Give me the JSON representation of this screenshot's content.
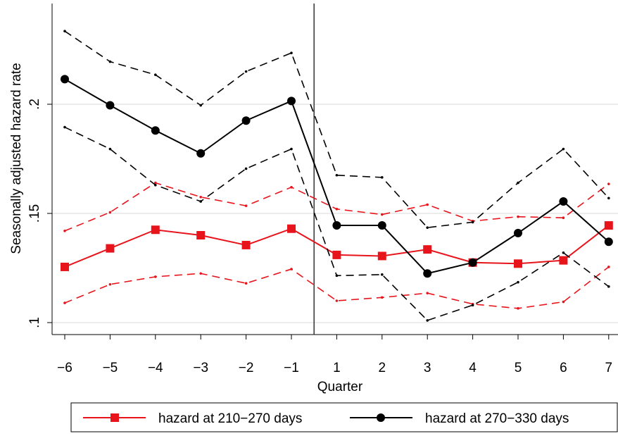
{
  "chart_data": {
    "type": "line",
    "xlabel": "Quarter",
    "ylabel": "Seasonally adjusted hazard rate",
    "categories": [
      "−6",
      "−5",
      "−4",
      "−3",
      "−2",
      "−1",
      "1",
      "2",
      "3",
      "4",
      "5",
      "6",
      "7"
    ],
    "yticks": [
      0.1,
      0.15,
      0.2
    ],
    "ytick_labels": [
      ".1",
      ".15",
      ".2"
    ],
    "ylim": [
      0.097,
      0.245
    ],
    "grid": "horizontal",
    "vline_after_category": "−1",
    "legend_position": "bottom",
    "series": [
      {
        "name": "hazard at 210−270 days",
        "color": "#e8141c",
        "marker": "square",
        "values": [
          0.1255,
          0.134,
          0.1425,
          0.14,
          0.1355,
          0.143,
          0.131,
          0.1305,
          0.1335,
          0.1275,
          0.127,
          0.1285,
          0.1445
        ],
        "ci_upper": [
          0.142,
          0.1505,
          0.164,
          0.1575,
          0.1535,
          0.162,
          0.152,
          0.1495,
          0.154,
          0.1465,
          0.1485,
          0.148,
          0.1635
        ],
        "ci_lower": [
          0.109,
          0.1175,
          0.121,
          0.1225,
          0.118,
          0.1245,
          0.11,
          0.1115,
          0.1135,
          0.1085,
          0.1065,
          0.1095,
          0.1255
        ]
      },
      {
        "name": "hazard at 270−330 days",
        "color": "#000000",
        "marker": "circle",
        "values": [
          0.2115,
          0.1995,
          0.188,
          0.1775,
          0.1925,
          0.2015,
          0.1445,
          0.1445,
          0.1225,
          0.1275,
          0.141,
          0.1555,
          0.137
        ],
        "ci_upper": [
          0.2335,
          0.2195,
          0.2135,
          0.1995,
          0.215,
          0.2235,
          0.1675,
          0.1665,
          0.1435,
          0.146,
          0.164,
          0.1795,
          0.157
        ],
        "ci_lower": [
          0.1895,
          0.1795,
          0.163,
          0.1555,
          0.1705,
          0.1795,
          0.1215,
          0.122,
          0.101,
          0.108,
          0.1185,
          0.132,
          0.1165
        ]
      }
    ]
  }
}
